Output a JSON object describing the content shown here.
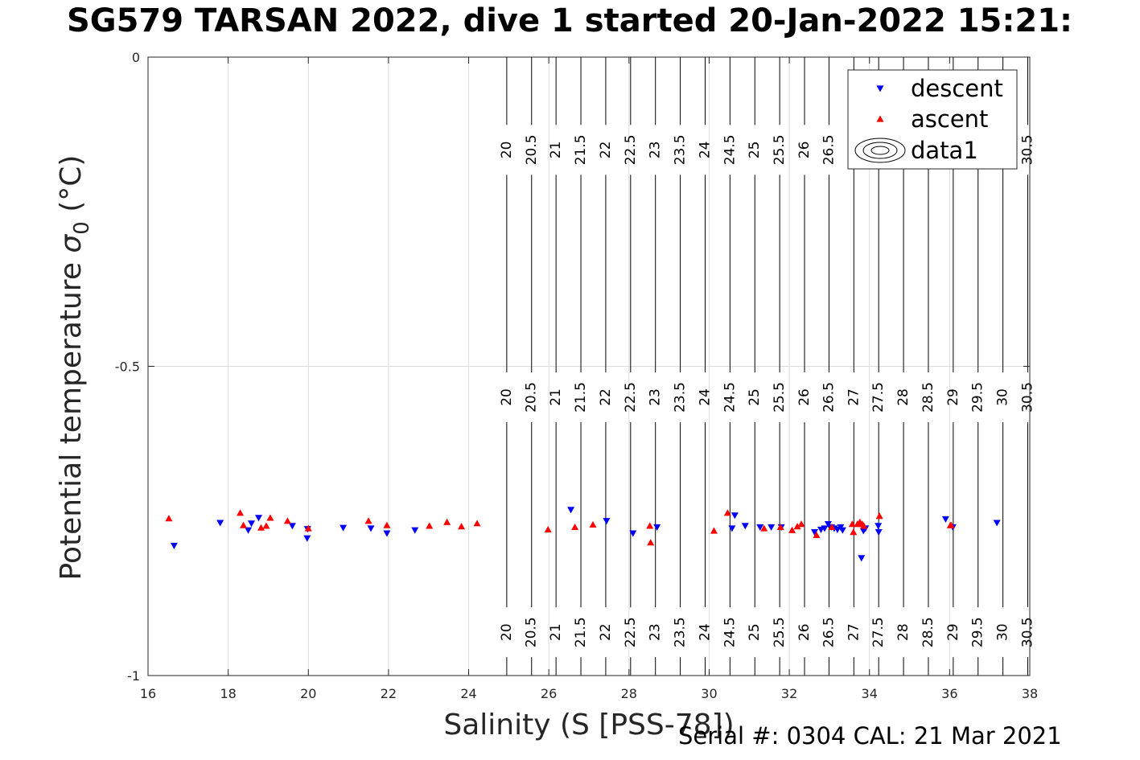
{
  "title": "SG579 TARSAN 2022, dive 1 started 20-Jan-2022 15:21:",
  "footer": "Serial #: 0304  CAL: 21 Mar 2021",
  "chart_data": {
    "type": "scatter",
    "xlabel": "Salinity (S [PSS-78])",
    "ylabel_prefix": "Potential temperature ",
    "ylabel_symbol": "σ",
    "ylabel_subscript": "0",
    "ylabel_suffix": " (°C)",
    "xlim": [
      16,
      38
    ],
    "ylim": [
      -1,
      0
    ],
    "xticks": [
      16,
      18,
      20,
      22,
      24,
      26,
      28,
      30,
      32,
      34,
      36,
      38
    ],
    "yticks": [
      -1,
      -0.5,
      0
    ],
    "ytick_labels": [
      "-1",
      "-0.5",
      "0"
    ],
    "grid": true,
    "legend_position": "top-right",
    "colors": {
      "descent": "#0000ff",
      "ascent": "#ff0000",
      "contour": "#000000",
      "grid": "#dcdcdc"
    },
    "contours": {
      "name": "data1",
      "levels": [
        20,
        20.5,
        21,
        21.5,
        22,
        22.5,
        23,
        23.5,
        24,
        24.5,
        25,
        25.5,
        26,
        26.5,
        27,
        27.5,
        28,
        28.5,
        29,
        29.5,
        30,
        30.5
      ],
      "level_labels": [
        "20",
        "20.5",
        "21",
        "21.5",
        "22",
        "22.5",
        "23",
        "23.5",
        "24",
        "24.5",
        "25",
        "25.5",
        "26",
        "26.5",
        "27",
        "27.5",
        "28",
        "28.5",
        "29",
        "29.5",
        "30",
        "30.5"
      ],
      "salinity_at_level": [
        24.95,
        25.57,
        26.18,
        26.8,
        27.42,
        28.04,
        28.66,
        29.28,
        29.9,
        30.52,
        31.14,
        31.76,
        32.38,
        32.99,
        33.61,
        34.23,
        34.85,
        35.47,
        36.09,
        36.71,
        37.33,
        37.95
      ],
      "label_rows_y": [
        -0.15,
        -0.55,
        -0.93
      ],
      "hidden_top_labels": [
        "27",
        "27.5",
        "28",
        "28.5",
        "29",
        "29.5",
        "30"
      ]
    },
    "series": [
      {
        "name": "descent",
        "marker": "triangle-down",
        "x": [
          16.65,
          17.8,
          18.5,
          18.58,
          18.76,
          19.6,
          19.97,
          19.98,
          20.87,
          21.56,
          21.96,
          22.66,
          26.55,
          27.44,
          28.1,
          28.7,
          30.57,
          30.64,
          30.9,
          31.27,
          31.55,
          31.8,
          32.63,
          32.79,
          32.88,
          32.97,
          33.05,
          33.12,
          33.2,
          33.28,
          33.33,
          33.8,
          33.85,
          33.9,
          34.22,
          34.23,
          35.9,
          36.08,
          37.18
        ],
        "y": [
          -0.79,
          -0.753,
          -0.765,
          -0.754,
          -0.745,
          -0.758,
          -0.778,
          -0.763,
          -0.761,
          -0.762,
          -0.77,
          -0.765,
          -0.732,
          -0.75,
          -0.77,
          -0.76,
          -0.762,
          -0.741,
          -0.758,
          -0.76,
          -0.76,
          -0.76,
          -0.768,
          -0.764,
          -0.762,
          -0.755,
          -0.76,
          -0.762,
          -0.764,
          -0.76,
          -0.765,
          -0.81,
          -0.766,
          -0.762,
          -0.758,
          -0.768,
          -0.747,
          -0.76,
          -0.753
        ]
      },
      {
        "name": "ascent",
        "marker": "triangle-up",
        "x": [
          16.52,
          18.3,
          18.38,
          18.82,
          18.95,
          19.05,
          19.48,
          20.0,
          21.5,
          21.96,
          23.02,
          23.46,
          23.82,
          24.21,
          25.98,
          26.65,
          27.1,
          28.52,
          28.54,
          30.12,
          30.46,
          31.37,
          31.78,
          32.07,
          32.2,
          32.3,
          32.68,
          33.06,
          33.57,
          33.6,
          33.7,
          33.76,
          33.82,
          33.86,
          34.25,
          36.02,
          36.04
        ],
        "y": [
          -0.746,
          -0.737,
          -0.757,
          -0.761,
          -0.758,
          -0.745,
          -0.75,
          -0.762,
          -0.75,
          -0.757,
          -0.758,
          -0.752,
          -0.759,
          -0.754,
          -0.764,
          -0.76,
          -0.756,
          -0.758,
          -0.785,
          -0.766,
          -0.737,
          -0.762,
          -0.76,
          -0.765,
          -0.759,
          -0.755,
          -0.773,
          -0.76,
          -0.755,
          -0.768,
          -0.755,
          -0.752,
          -0.755,
          -0.758,
          -0.742,
          -0.757,
          -0.757
        ]
      }
    ]
  }
}
